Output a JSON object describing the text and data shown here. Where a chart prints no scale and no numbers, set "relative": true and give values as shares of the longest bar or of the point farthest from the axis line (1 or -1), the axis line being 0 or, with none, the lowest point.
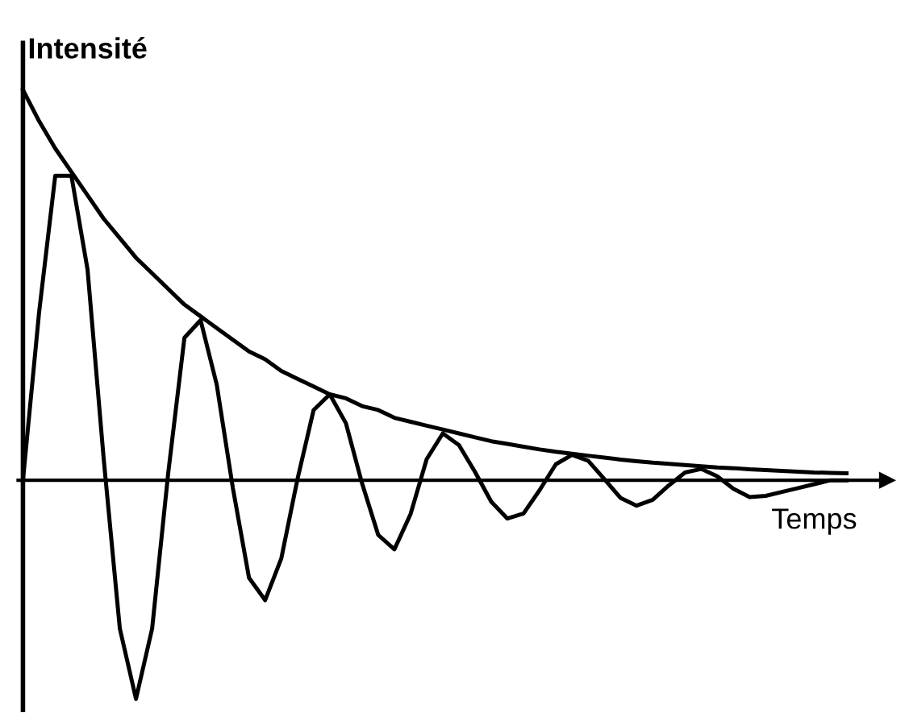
{
  "chart_data": {
    "type": "line",
    "relative": true,
    "xlabel": "Temps",
    "ylabel": "Intensité",
    "categories": [
      null,
      null,
      null,
      null,
      null,
      null,
      null,
      null,
      null,
      null,
      null,
      null,
      null,
      null,
      null,
      null,
      null,
      null,
      null,
      null,
      null,
      null,
      null,
      null,
      null,
      null,
      null,
      null,
      null,
      null,
      null,
      null,
      null,
      null,
      null,
      null,
      null,
      null,
      null,
      null,
      null,
      null,
      null,
      null,
      null,
      null,
      null,
      null,
      null,
      null,
      null,
      null
    ],
    "series": [
      {
        "color": "#000000",
        "values": [
          1,
          0.92,
          0.85,
          0.79,
          0.73,
          0.67,
          0.62,
          0.57,
          0.53,
          0.49,
          0.45,
          0.42,
          0.39,
          0.36,
          0.33,
          0.31,
          0.28,
          0.26,
          0.24,
          0.22,
          0.21,
          0.19,
          0.18,
          0.16,
          0.15,
          0.14,
          0.13,
          0.12,
          0.11,
          0.1,
          0.093,
          0.086,
          0.079,
          0.073,
          0.068,
          0.063,
          0.058,
          0.053,
          0.049,
          0.045,
          0.042,
          0.039,
          0.036,
          0.033,
          0.031,
          0.028,
          0.026,
          0.024,
          0.022,
          0.02,
          0.019,
          0.018
        ]
      },
      {
        "color": "#000000",
        "values": [
          0,
          0.43,
          0.78,
          0.78,
          0.54,
          0.055,
          -0.38,
          -0.56,
          -0.38,
          0.02,
          0.365,
          0.41,
          0.245,
          -0.02,
          -0.25,
          -0.307,
          -0.2,
          0.003,
          0.18,
          0.22,
          0.146,
          -0.008,
          -0.14,
          -0.177,
          -0.087,
          0.054,
          0.12,
          0.09,
          0.021,
          -0.055,
          -0.098,
          -0.085,
          -0.025,
          0.041,
          0.065,
          0.05,
          0.003,
          -0.045,
          -0.065,
          -0.05,
          -0.013,
          0.02,
          0.029,
          0.01,
          -0.022,
          -0.043,
          -0.04,
          -0.03,
          -0.02,
          -0.01,
          0,
          0
        ]
      }
    ],
    "legend": false,
    "marker": "none",
    "line_style": "solid"
  }
}
